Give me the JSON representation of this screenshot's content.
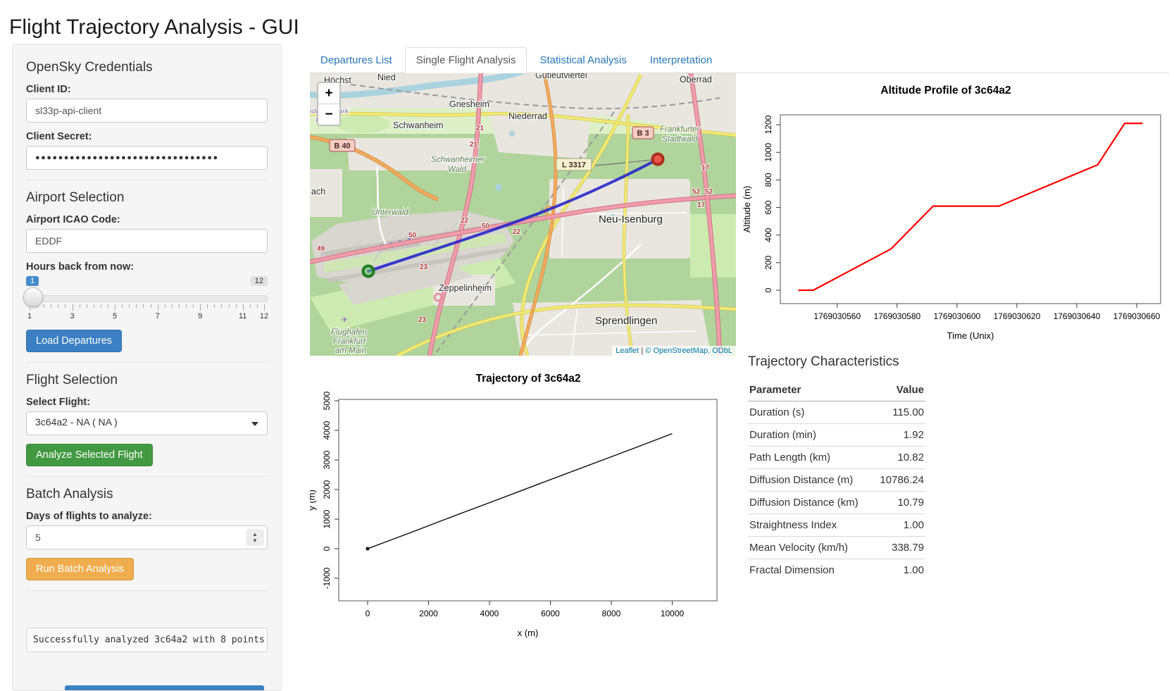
{
  "page": {
    "title": "Flight Trajectory Analysis - GUI"
  },
  "colors": {
    "primary_button": "#3a80c2",
    "success_button": "#429942",
    "warning_button": "#f0ad4e",
    "tab_link": "#2977b8",
    "altitude_line": "#ff0000",
    "map_trajectory_line": "#2121cc",
    "slider_badge": "#428bca"
  },
  "sidebar": {
    "credentials": {
      "heading": "OpenSky Credentials",
      "client_id_label": "Client ID:",
      "client_id_value": "sl33p-api-client",
      "client_secret_label": "Client Secret:",
      "client_secret_masked": "●●●●●●●●●●●●●●●●●●●●●●●●●●●●●●●●"
    },
    "airport": {
      "heading": "Airport Selection",
      "icao_label": "Airport ICAO Code:",
      "icao_value": "EDDF",
      "hours_label": "Hours back from now:",
      "slider": {
        "value": "1",
        "min": "1",
        "max": "12",
        "tick_labels": [
          "1",
          "3",
          "5",
          "7",
          "9",
          "11",
          "12"
        ]
      },
      "load_button": "Load Departures"
    },
    "flight": {
      "heading": "Flight Selection",
      "select_label": "Select Flight:",
      "selected_option": "3c64a2 - NA ( NA )",
      "analyze_button": "Analyze Selected Flight"
    },
    "batch": {
      "heading": "Batch Analysis",
      "days_label": "Days of flights to analyze:",
      "days_value": "5",
      "run_button": "Run Batch Analysis"
    },
    "status_message": "Successfully analyzed 3c64a2 with 8 points"
  },
  "tabs": [
    {
      "label": "Departures List"
    },
    {
      "label": "Single Flight Analysis"
    },
    {
      "label": "Statistical Analysis"
    },
    {
      "label": "Interpretation"
    }
  ],
  "map": {
    "zoom_in": "+",
    "zoom_out": "−",
    "attribution": {
      "leaflet": "Leaflet",
      "sep": " | ",
      "osm": "© OpenStreetMap",
      "odbl": ", ODbL"
    },
    "labels": {
      "hoechst": "Höchst",
      "nied": "Nied",
      "griesheim": "Griesheim",
      "gutleutviertel": "Gutleutviertel",
      "oberrad": "Oberrad",
      "industriepark": "Industriepark",
      "hoechst_small": "Höchst",
      "schwanheim": "Schwanheim",
      "niederrad": "Niederrad",
      "schwanheimer_wald_1": "Schwanheimer",
      "schwanheimer_wald_2": "Wald",
      "unterwald": "Unterwald",
      "frankfurter_stadtwald_1": "Frankfurter",
      "frankfurter_stadtwald_2": "Stadtwald",
      "neu_isenburg": "Neu-Isenburg",
      "zeppelinheim": "Zeppelinheim",
      "sprendlingen": "Sprendlingen",
      "flughafen_1": "Flughafen",
      "flughafen_2": "Frankfurt",
      "flughafen_3": "am Main",
      "kelsterbach_partial": "ach"
    },
    "shields": {
      "b40": "B 40",
      "b3": "B 3",
      "l3317": "L 3317"
    },
    "refs": {
      "r17": "17",
      "r21": "21",
      "r22": "22",
      "r23": "23",
      "r49": "49",
      "r50": "50",
      "r52": "52"
    },
    "icons": {
      "plane": "✈"
    }
  },
  "analysis": {
    "table_heading": "Trajectory Characteristics",
    "table": {
      "headers": [
        "Parameter",
        "Value"
      ],
      "rows": [
        [
          "Duration (s)",
          "115.00"
        ],
        [
          "Duration (min)",
          "1.92"
        ],
        [
          "Path Length (km)",
          "10.82"
        ],
        [
          "Diffusion Distance (m)",
          "10786.24"
        ],
        [
          "Diffusion Distance (km)",
          "10.79"
        ],
        [
          "Straightness Index",
          "1.00"
        ],
        [
          "Mean Velocity (km/h)",
          "338.79"
        ],
        [
          "Fractal Dimension",
          "1.00"
        ]
      ]
    }
  },
  "chart_data": [
    {
      "id": "altitude_profile",
      "type": "line",
      "title": "Altitude Profile of 3c64a2",
      "xlabel": "Time (Unix)",
      "ylabel": "Altitude (m)",
      "color": "#ff0000",
      "x": [
        1769030547,
        1769030552,
        1769030578,
        1769030592,
        1769030614,
        1769030647,
        1769030656,
        1769030662
      ],
      "y": [
        0,
        0,
        300,
        610,
        610,
        910,
        1210,
        1210
      ],
      "xlim": [
        1769030541,
        1769030668
      ],
      "ylim": [
        -97,
        1272
      ],
      "xticks": [
        1769030560,
        1769030580,
        1769030600,
        1769030620,
        1769030640,
        1769030660
      ],
      "yticks": [
        0,
        200,
        400,
        600,
        800,
        1000,
        1200
      ],
      "grid": false,
      "legend": null
    },
    {
      "id": "trajectory_xy",
      "type": "line",
      "title": "Trajectory of 3c64a2",
      "xlabel": "x (m)",
      "ylabel": "y (m)",
      "color": "#000000",
      "marker_start": true,
      "x": [
        0,
        1450,
        2900,
        4350,
        5800,
        7250,
        8700,
        10000
      ],
      "y": [
        0,
        560,
        1130,
        1690,
        2260,
        2820,
        3380,
        3890
      ],
      "xlim": [
        -948,
        11468
      ],
      "ylim": [
        -1762,
        5048
      ],
      "xticks": [
        0,
        2000,
        4000,
        6000,
        8000,
        10000
      ],
      "yticks": [
        -1000,
        0,
        1000,
        2000,
        3000,
        4000,
        5000
      ],
      "grid": false,
      "legend": null
    }
  ]
}
